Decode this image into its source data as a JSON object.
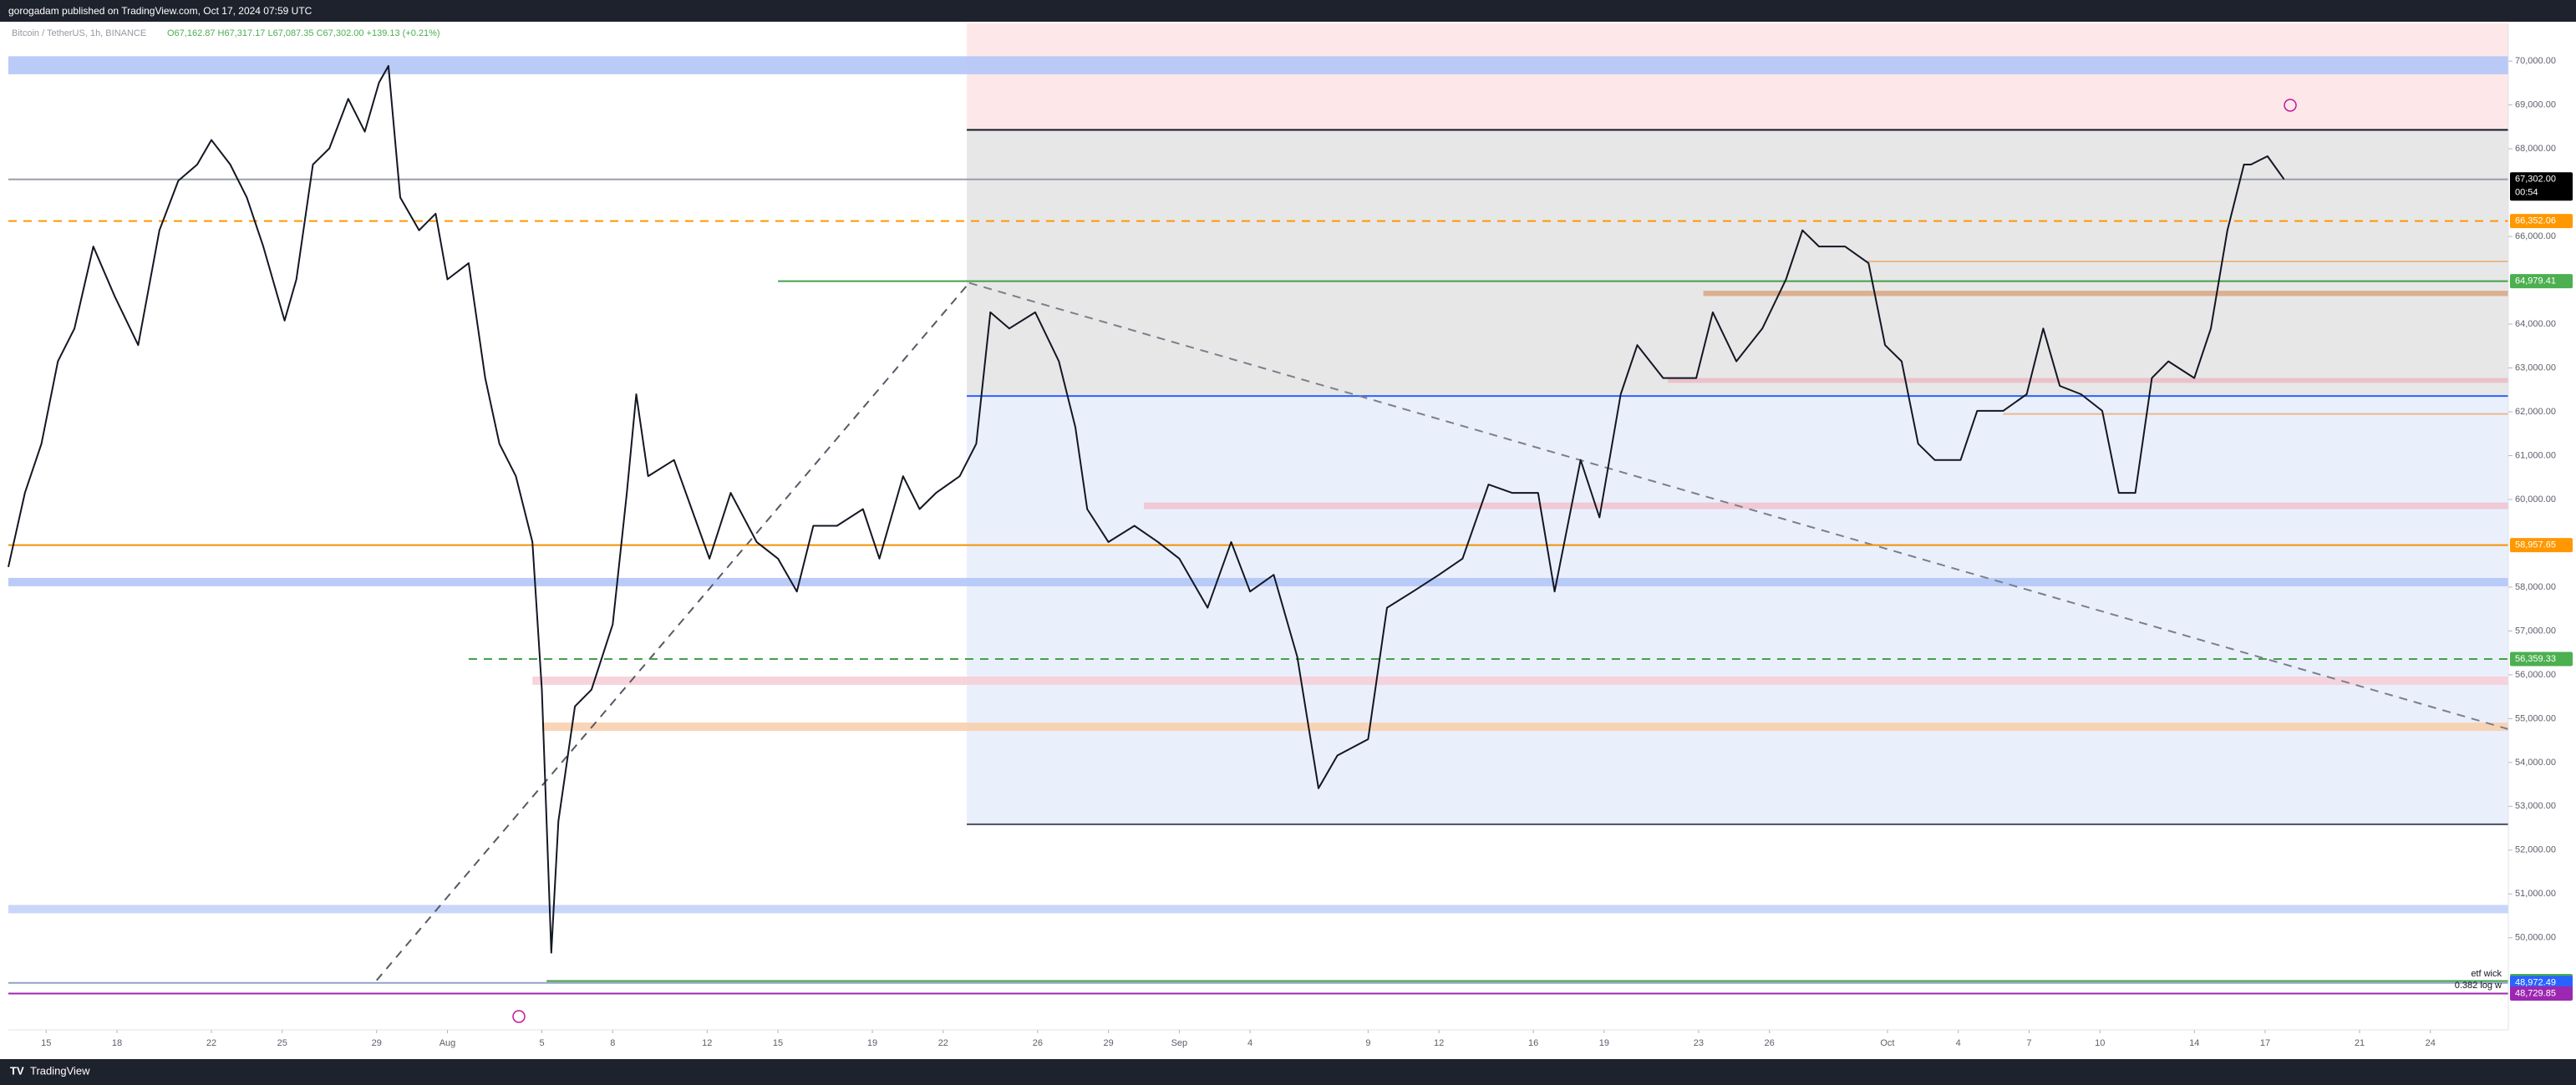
{
  "header": {
    "title": "gorogadam published on TradingView.com, Oct 17, 2024 07:59 UTC",
    "symbol": "Bitcoin / TetherUS, 1h, BINANCE",
    "ohlc": "O67,162.87  H67,317.17  L67,087.35  C67,302.00  +139.13 (+0.21%)"
  },
  "footer": {
    "brand": "TradingView"
  },
  "chart_data": {
    "type": "line",
    "color": "#131722",
    "xlim": [
      13.4,
      119.3
    ],
    "ylim": [
      47900,
      70860
    ],
    "grid": false,
    "x": [
      13.4,
      14.1,
      14.8,
      15.5,
      16.2,
      17.0,
      17.9,
      18.9,
      19.8,
      20.6,
      21.4,
      22.0,
      22.8,
      23.5,
      24.2,
      25.1,
      25.6,
      26.3,
      27.0,
      27.8,
      28.5,
      29.1,
      29.5,
      30.0,
      30.8,
      31.5,
      32.0,
      32.9,
      33.6,
      34.2,
      34.9,
      35.6,
      36.0,
      36.4,
      36.7,
      37.4,
      38.1,
      39.0,
      39.6,
      40.0,
      40.5,
      41.6,
      42.6,
      43.1,
      44.0,
      45.1,
      46.0,
      46.8,
      47.5,
      48.5,
      49.6,
      50.3,
      51.3,
      52.0,
      52.7,
      53.7,
      54.4,
      55.0,
      55.8,
      56.9,
      57.9,
      58.6,
      59.1,
      60.0,
      61.1,
      62.1,
      63.0,
      64.2,
      65.2,
      66.0,
      67.0,
      68.0,
      68.9,
      69.7,
      71.0,
      71.8,
      72.9,
      74.0,
      75.0,
      76.1,
      77.1,
      78.2,
      78.9,
      80.0,
      80.8,
      81.7,
      82.4,
      83.5,
      84.9,
      85.6,
      86.6,
      87.7,
      88.7,
      89.4,
      90.1,
      91.2,
      92.2,
      92.9,
      93.6,
      94.3,
      95.0,
      96.1,
      96.8,
      97.9,
      98.9,
      99.6,
      100.3,
      101.2,
      102.1,
      102.8,
      103.5,
      104.2,
      104.9,
      106.0,
      106.7,
      107.4,
      108.1,
      108.4,
      109.1,
      109.8
    ],
    "values": [
      58460,
      60150,
      61270,
      63150,
      63900,
      65770,
      64640,
      63520,
      66140,
      67270,
      67640,
      68200,
      67640,
      66890,
      65770,
      64080,
      65020,
      67640,
      68010,
      69140,
      68390,
      69510,
      69890,
      66890,
      66140,
      66520,
      65020,
      65390,
      62770,
      61270,
      60530,
      59030,
      55660,
      49660,
      52660,
      55280,
      55660,
      57150,
      60150,
      62400,
      60530,
      60900,
      59400,
      58650,
      60150,
      59030,
      58650,
      57900,
      59400,
      59400,
      59780,
      58650,
      60530,
      59780,
      60150,
      60530,
      61270,
      64270,
      63900,
      64270,
      63150,
      61650,
      59780,
      59030,
      59400,
      59030,
      58650,
      57530,
      59030,
      57900,
      58280,
      56410,
      53410,
      54160,
      54530,
      57530,
      57900,
      58280,
      58650,
      60340,
      60150,
      60150,
      57900,
      60900,
      59590,
      62400,
      63520,
      62770,
      62770,
      64270,
      63150,
      63900,
      65020,
      66140,
      65770,
      65770,
      65390,
      63520,
      63150,
      61270,
      60900,
      60900,
      62020,
      62020,
      62400,
      63900,
      62590,
      62400,
      62020,
      60150,
      60150,
      62770,
      63150,
      62770,
      63900,
      66140,
      67640,
      67640,
      67830,
      67302
    ],
    "xticks": [
      15,
      18,
      22,
      25,
      29,
      {
        "value": 32,
        "label": "Aug"
      },
      {
        "value": 36,
        "label": "5"
      },
      {
        "value": 39,
        "label": "8"
      },
      {
        "value": 43,
        "label": "12"
      },
      {
        "value": 46,
        "label": "15"
      },
      {
        "value": 50,
        "label": "19"
      },
      {
        "value": 53,
        "label": "22"
      },
      {
        "value": 57,
        "label": "26"
      },
      {
        "value": 60,
        "label": "29"
      },
      {
        "value": 63,
        "label": "Sep"
      },
      {
        "value": 66,
        "label": "4"
      },
      {
        "value": 71,
        "label": "9"
      },
      {
        "value": 74,
        "label": "12"
      },
      {
        "value": 78,
        "label": "16"
      },
      {
        "value": 81,
        "label": "19"
      },
      {
        "value": 85,
        "label": "23"
      },
      {
        "value": 88,
        "label": "26"
      },
      {
        "value": 93,
        "label": "Oct"
      },
      {
        "value": 96,
        "label": "4"
      },
      {
        "value": 99,
        "label": "7"
      },
      {
        "value": 102,
        "label": "10"
      },
      {
        "value": 106,
        "label": "14"
      },
      {
        "value": 109,
        "label": "17"
      },
      {
        "value": 113,
        "label": "21"
      },
      {
        "value": 116,
        "label": "24"
      }
    ],
    "yticks": [
      {
        "value": 50000,
        "label": "50,000.00"
      },
      {
        "value": 51000,
        "label": "51,000.00"
      },
      {
        "value": 52000,
        "label": "52,000.00"
      },
      {
        "value": 53000,
        "label": "53,000.00"
      },
      {
        "value": 54000,
        "label": "54,000.00"
      },
      {
        "value": 55000,
        "label": "55,000.00"
      },
      {
        "value": 56000,
        "label": "56,000.00"
      },
      {
        "value": 57000,
        "label": "57,000.00"
      },
      {
        "value": 58000,
        "label": "58,000.00"
      },
      {
        "value": 60000,
        "label": "60,000.00"
      },
      {
        "value": 61000,
        "label": "61,000.00"
      },
      {
        "value": 62000,
        "label": "62,000.00"
      },
      {
        "value": 63000,
        "label": "63,000.00"
      },
      {
        "value": 64000,
        "label": "64,000.00"
      },
      {
        "value": 66000,
        "label": "66,000.00"
      },
      {
        "value": 68000,
        "label": "68,000.00"
      },
      {
        "value": 69000,
        "label": "69,000.00"
      },
      {
        "value": 70000,
        "label": "70,000.00"
      }
    ],
    "zones": [
      {
        "x": [
          54.0,
          119.3
        ],
        "y": [
          68430,
          70860
        ],
        "color": "#fde4e7"
      },
      {
        "x": [
          54.0,
          119.3
        ],
        "y": [
          62360,
          68430
        ],
        "color": "#e4e4e6"
      },
      {
        "x": [
          54.0,
          119.3
        ],
        "y": [
          52590,
          62360
        ],
        "color": "#e8edfc"
      },
      {
        "x": [
          13.4,
          119.3
        ],
        "y": [
          69700,
          70110
        ],
        "color": "#b2c5f6"
      },
      {
        "x": [
          13.4,
          119.3
        ],
        "y": [
          58020,
          58210
        ],
        "color": "#b2c5f6"
      },
      {
        "x": [
          13.4,
          119.3
        ],
        "y": [
          50560,
          50750
        ],
        "color": "#c2d1f8"
      },
      {
        "x": [
          35.6,
          119.3
        ],
        "y": [
          55770,
          55960
        ],
        "color": "#f6cfd8"
      },
      {
        "x": [
          36.0,
          119.3
        ],
        "y": [
          54720,
          54910
        ],
        "color": "#f8cfae"
      },
      {
        "x": [
          61.5,
          119.3
        ],
        "y": [
          59780,
          59930
        ],
        "color": "#efc4d2"
      },
      {
        "x": [
          83.7,
          119.3
        ],
        "y": [
          62660,
          62770
        ],
        "color": "#ebbcc6"
      },
      {
        "x": [
          85.2,
          119.3
        ],
        "y": [
          64640,
          64760
        ],
        "color": "#d9a986"
      }
    ],
    "lines": [
      {
        "x": [
          54.0,
          119.3
        ],
        "y": [
          68430,
          68430
        ],
        "color": "#131722",
        "dash": false
      },
      {
        "x": [
          54.0,
          119.3
        ],
        "y": [
          62360,
          62360
        ],
        "color": "#2962ff",
        "dash": false
      },
      {
        "x": [
          54.0,
          119.3
        ],
        "y": [
          52590,
          52590
        ],
        "color": "#4a4f5c",
        "dash": false
      },
      {
        "x": [
          92.1,
          119.3
        ],
        "y": [
          65430,
          65430
        ],
        "color": "#e9b98c",
        "dash": false
      },
      {
        "x": [
          97.9,
          119.3
        ],
        "y": [
          61950,
          61950
        ],
        "color": "#e9b98c",
        "dash": false
      },
      {
        "x": [
          29.0,
          54.1
        ],
        "y": [
          49030,
          64940
        ],
        "color": "#555a66",
        "dash": true
      },
      {
        "x": [
          54.1,
          119.3
        ],
        "y": [
          64940,
          54760
        ],
        "color": "#7a7f8a",
        "dash": true
      }
    ],
    "levels": [
      {
        "price": 67302,
        "label": "67,302.00",
        "sublabel": "00:54",
        "color": "#000000",
        "line": "#9a9ea8",
        "dash": false,
        "from": 13.4
      },
      {
        "price": 66352.06,
        "label": "66,352.06",
        "color": "#ff9800",
        "line": "#ff9800",
        "dash": true,
        "from": 13.4
      },
      {
        "price": 64979.41,
        "label": "64,979.41",
        "color": "#4caf50",
        "line": "#43a047",
        "dash": false,
        "from": 46.0
      },
      {
        "price": 58957.65,
        "label": "58,957.65",
        "color": "#ff9800",
        "line": "#f39200",
        "dash": false,
        "from": 13.4
      },
      {
        "price": 56359.33,
        "label": "56,359.33",
        "color": "#4caf50",
        "line": "#43a047",
        "dash": true,
        "from": 32.9
      },
      {
        "price": 49014.13,
        "label": "49,014.13",
        "color": "#4caf50",
        "line": "#43a047",
        "dash": false,
        "from": 36.2
      },
      {
        "price": 48972.49,
        "label": "48,972.49",
        "color": "#2962ff",
        "line": "#90a4c8",
        "dash": false,
        "from": 13.4
      },
      {
        "price": 48729.85,
        "label": "48,729.85",
        "color": "#9c27b0",
        "line": "#9c27b0",
        "dash": false,
        "from": 13.4
      }
    ],
    "annotations": [
      "etf wick",
      "0.382 log w"
    ]
  }
}
